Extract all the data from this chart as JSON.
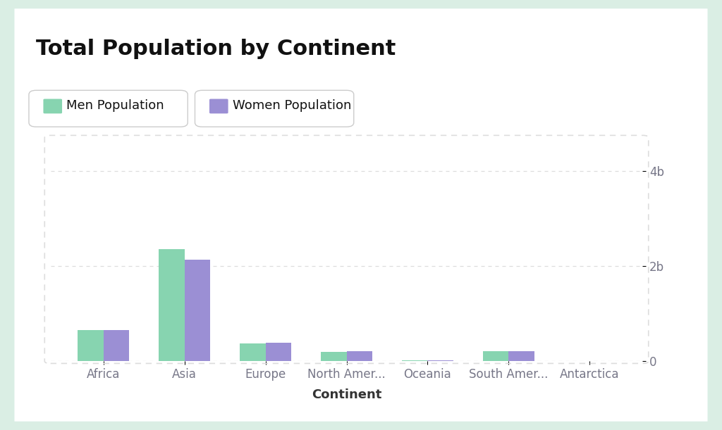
{
  "title": "Total Population by Continent",
  "xlabel": "Continent",
  "categories": [
    "Africa",
    "Asia",
    "Europe",
    "North Amer...",
    "Oceania",
    "South Amer...",
    "Antarctica"
  ],
  "men_values": [
    660000000,
    2360000000,
    375000000,
    200000000,
    20000000,
    215000000,
    1500
  ],
  "women_values": [
    650000000,
    2140000000,
    385000000,
    205000000,
    20000000,
    218000000,
    1200
  ],
  "men_color": "#87d4b0",
  "women_color": "#9b8fd4",
  "men_label": "Men Population",
  "women_label": "Women Population",
  "background_outer": "#daeee4",
  "background_card": "#ffffff",
  "background_inner": "#ffffff",
  "yticks": [
    0,
    2000000000,
    4000000000
  ],
  "ytick_labels": [
    "0",
    "2b",
    "4b"
  ],
  "ylim": [
    0,
    4700000000
  ],
  "grid_color": "#dddddd",
  "border_color": "#dddddd",
  "title_fontsize": 22,
  "label_fontsize": 13,
  "tick_fontsize": 12,
  "legend_fontsize": 13,
  "bar_width": 0.32,
  "axis_text_color": "#777788",
  "title_color": "#111111",
  "xlabel_color": "#333333"
}
